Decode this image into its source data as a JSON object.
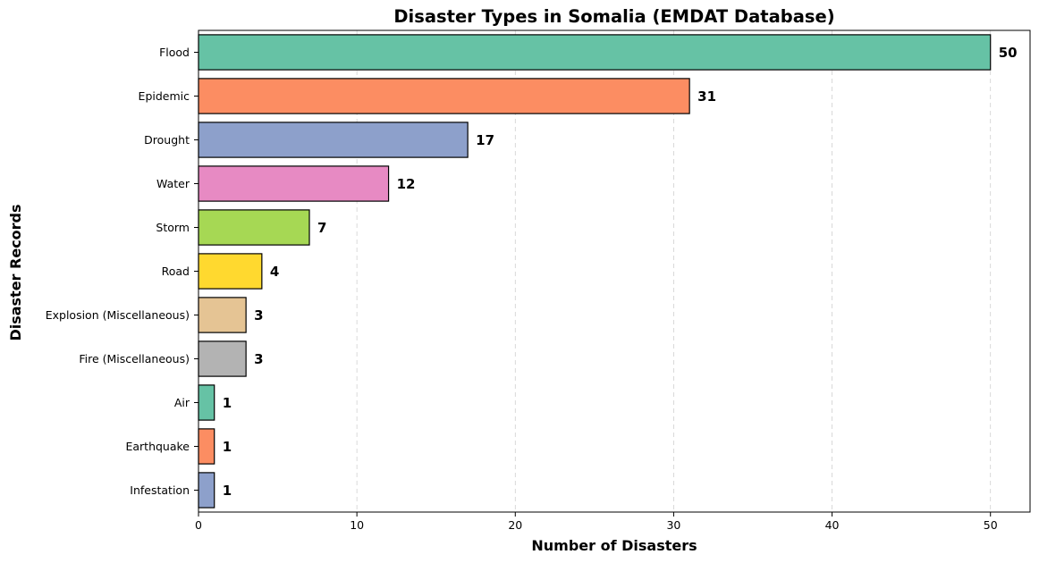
{
  "chart_data": {
    "type": "bar",
    "orientation": "horizontal",
    "title": "Disaster Types in Somalia (EMDAT Database)",
    "xlabel": "Number of Disasters",
    "ylabel": "Disaster Records",
    "categories": [
      "Flood",
      "Epidemic",
      "Drought",
      "Water",
      "Storm",
      "Road",
      "Explosion (Miscellaneous)",
      "Fire (Miscellaneous)",
      "Air",
      "Earthquake",
      "Infestation"
    ],
    "values": [
      50,
      31,
      17,
      12,
      7,
      4,
      3,
      3,
      1,
      1,
      1
    ],
    "value_labels": [
      "50",
      "31",
      "17",
      "12",
      "7",
      "4",
      "3",
      "3",
      "1",
      "1",
      "1"
    ],
    "colors": [
      "#66c2a5",
      "#fc8d62",
      "#8da0cb",
      "#e78ac3",
      "#a6d854",
      "#ffd92f",
      "#e5c494",
      "#b3b3b3",
      "#66c2a5",
      "#fc8d62",
      "#8da0cb"
    ],
    "xlim": [
      0,
      52.5
    ],
    "xticks": [
      0,
      10,
      20,
      30,
      40,
      50
    ],
    "xtick_labels": [
      "0",
      "10",
      "20",
      "30",
      "40",
      "50"
    ],
    "grid": "x-axis, dashed",
    "legend": "none"
  }
}
